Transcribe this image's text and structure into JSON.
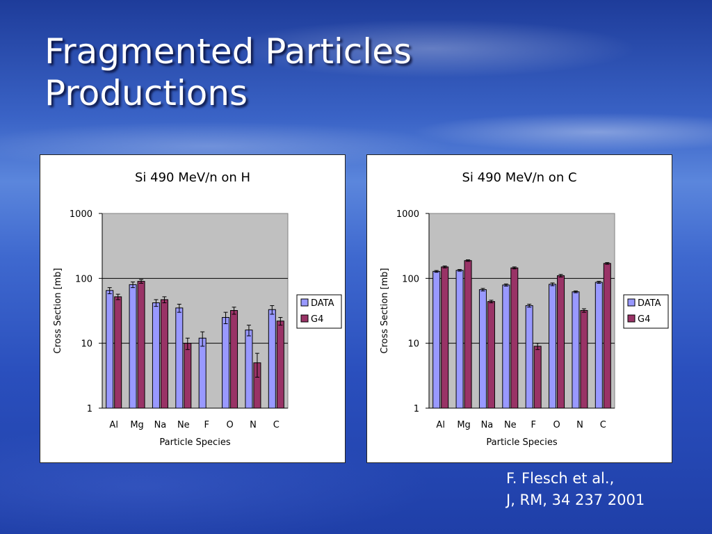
{
  "slide": {
    "title_lines": [
      "Fragmented Particles",
      "Productions"
    ]
  },
  "citation": {
    "line1": "F. Flesch et al.,",
    "line2": "J, RM, 34 237 2001"
  },
  "colors": {
    "data_fill": "#9999ff",
    "g4_fill": "#993366",
    "plot_bg": "#c0c0c0"
  },
  "chart_data": [
    {
      "type": "bar",
      "title": "Si 490 MeV/n on H",
      "xlabel": "Particle Species",
      "ylabel": "Cross Section [mb]",
      "y_scale": "log",
      "ylim": [
        1,
        1000
      ],
      "yticks": [
        "1",
        "10",
        "100",
        "1000"
      ],
      "grid": true,
      "legend_position": "right",
      "categories": [
        "Al",
        "Mg",
        "Na",
        "Ne",
        "F",
        "O",
        "N",
        "C"
      ],
      "series": [
        {
          "name": "DATA",
          "values": [
            65,
            80,
            42,
            35,
            12,
            25,
            16,
            33
          ],
          "errors": [
            7,
            8,
            5,
            5,
            3,
            5,
            3,
            5
          ]
        },
        {
          "name": "G4",
          "values": [
            52,
            90,
            47,
            10,
            null,
            32,
            5,
            22
          ],
          "errors": [
            5,
            6,
            5,
            2,
            null,
            4,
            2,
            3
          ]
        }
      ]
    },
    {
      "type": "bar",
      "title": "Si 490 MeV/n on C",
      "xlabel": "Particle Species",
      "ylabel": "Cross Section [mb]",
      "y_scale": "log",
      "ylim": [
        1,
        1000
      ],
      "yticks": [
        "1",
        "10",
        "100",
        "1000"
      ],
      "grid": true,
      "legend_position": "right",
      "categories": [
        "Al",
        "Mg",
        "Na",
        "Ne",
        "F",
        "O",
        "N",
        "C"
      ],
      "series": [
        {
          "name": "DATA",
          "values": [
            128,
            133,
            67,
            79,
            38,
            81,
            62,
            87
          ],
          "errors": [
            4,
            4,
            3,
            3,
            2,
            4,
            2,
            3
          ]
        },
        {
          "name": "G4",
          "values": [
            150,
            188,
            44,
            145,
            9,
            110,
            32,
            170
          ],
          "errors": [
            5,
            5,
            2,
            5,
            1,
            5,
            2,
            5
          ]
        }
      ]
    }
  ]
}
